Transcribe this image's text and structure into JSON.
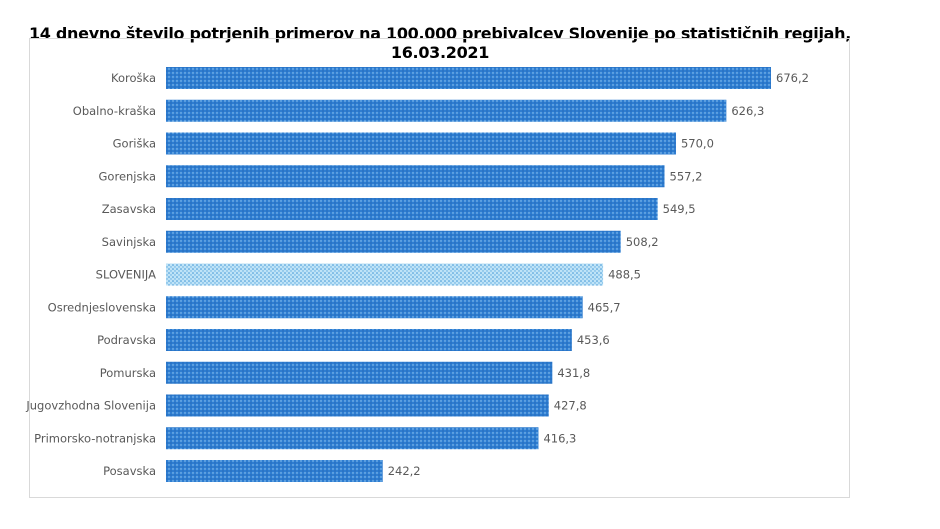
{
  "chart_data": {
    "type": "bar",
    "orientation": "horizontal",
    "title": "14 dnevno število potrjenih primerov na 100.000 prebivalcev Slovenije po statističnih regijah, 16.03.2021",
    "categories": [
      "Koroška",
      "Obalno-kraška",
      "Goriška",
      "Gorenjska",
      "Zasavska",
      "Savinjska",
      "SLOVENIJA",
      "Osrednjeslovenska",
      "Podravska",
      "Pomurska",
      "Jugovzhodna Slovenija",
      "Primorsko-notranjska",
      "Posavska"
    ],
    "values": [
      676.2,
      626.3,
      570.0,
      557.2,
      549.5,
      508.2,
      488.5,
      465.7,
      453.6,
      431.8,
      427.8,
      416.3,
      242.2
    ],
    "data_labels": [
      "676,2",
      "626,3",
      "570,0",
      "557,2",
      "549,5",
      "508,2",
      "488,5",
      "465,7",
      "453,6",
      "431,8",
      "427,8",
      "416,3",
      "242,2"
    ],
    "highlight_category": "SLOVENIJA",
    "xlim": [
      0,
      700
    ],
    "grid": false,
    "legend": "none",
    "colors": {
      "bar": "#2e7dd1",
      "highlight": "#7cc3ea"
    }
  }
}
